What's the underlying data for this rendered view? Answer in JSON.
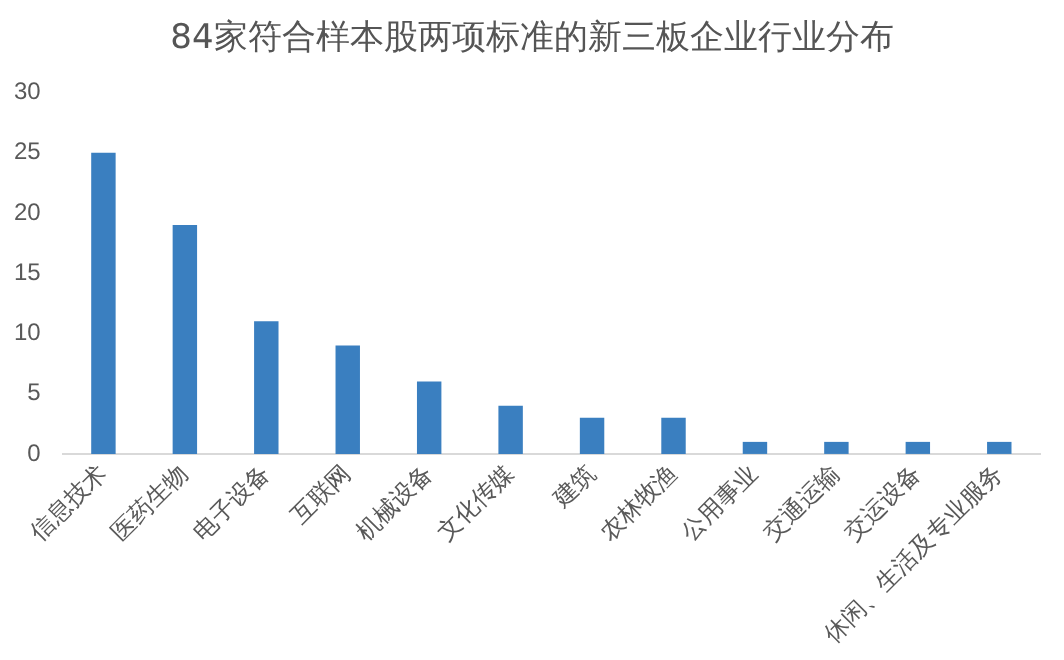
{
  "chart_data": {
    "type": "bar",
    "title": "84家符合样本股两项标准的新三板企业行业分布",
    "categories": [
      "信息技术",
      "医药生物",
      "电子设备",
      "互联网",
      "机械设备",
      "文化传媒",
      "建筑",
      "农林牧渔",
      "公用事业",
      "交通运输",
      "交运设备",
      "休闲、生活及专业服务"
    ],
    "values": [
      25,
      19,
      11,
      9,
      6,
      4,
      3,
      3,
      1,
      1,
      1,
      1
    ],
    "color": "#3a7fc0",
    "ylim": [
      0,
      30
    ],
    "yticks": [
      0,
      5,
      10,
      15,
      20,
      25,
      30
    ],
    "grid": false,
    "legend": false
  }
}
